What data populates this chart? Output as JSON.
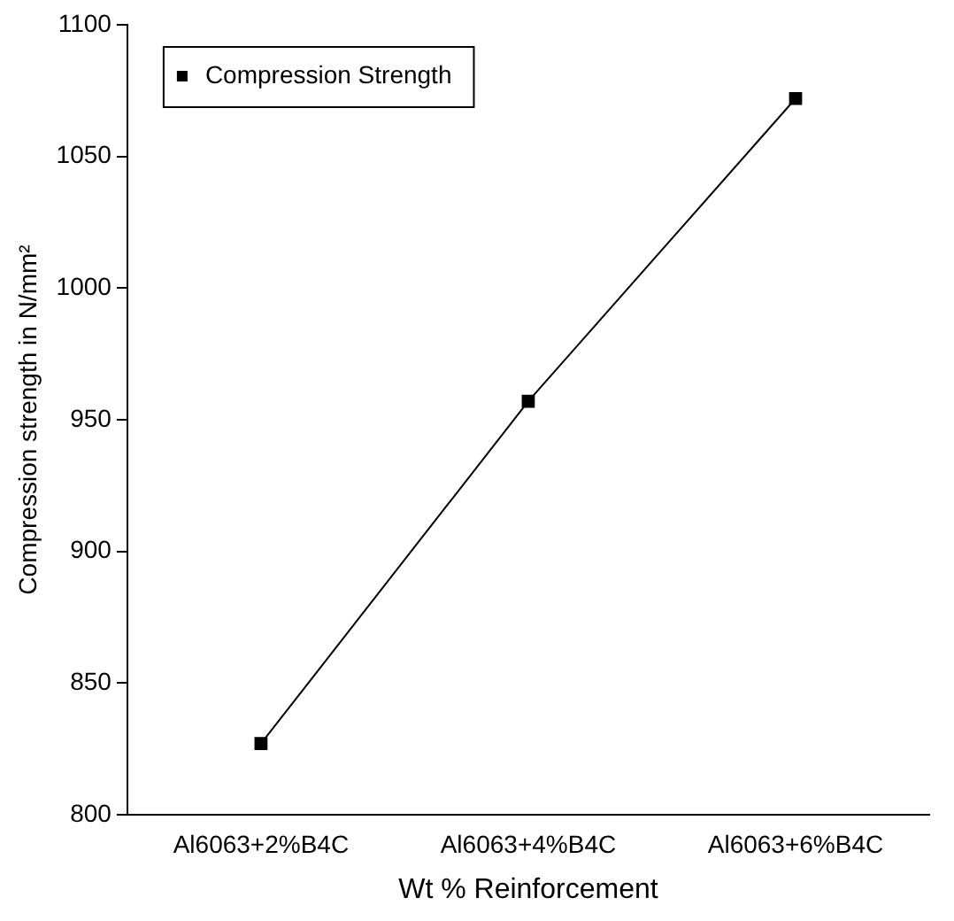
{
  "chart_data": {
    "type": "line",
    "xlabel": "Wt % Reinforcement",
    "ylabel": "Compression strength in N/mm²",
    "categories": [
      "Al6063+2%B4C",
      "Al6063+4%B4C",
      "Al6063+6%B4C"
    ],
    "series": [
      {
        "name": "Compression Strength",
        "color": "#000000",
        "values": [
          827,
          957,
          1072
        ]
      }
    ],
    "ylim": [
      800,
      1100
    ],
    "yticks": [
      800,
      850,
      900,
      950,
      1000,
      1050,
      1100
    ],
    "grid": false,
    "legend": "top left",
    "marker": "square",
    "line_style": "solid"
  }
}
